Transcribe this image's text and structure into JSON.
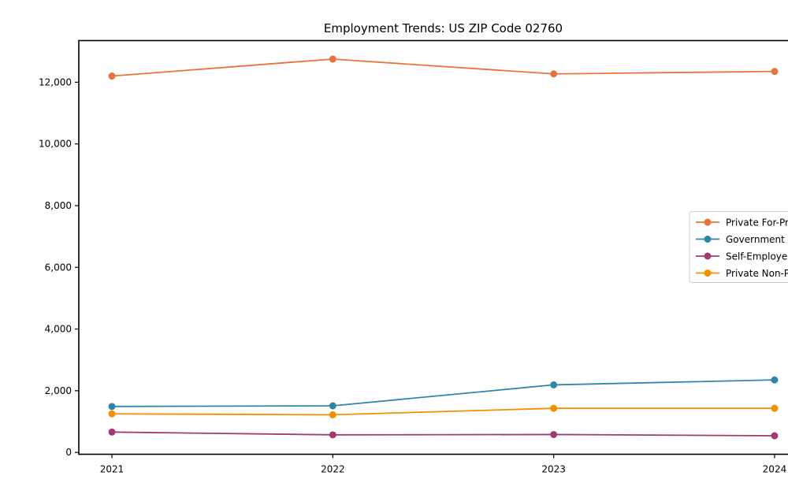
{
  "chart_data": {
    "type": "line",
    "title": "Employment Trends: US ZIP Code 02760",
    "x": [
      2021,
      2022,
      2023,
      2024
    ],
    "x_tick_labels": [
      "2021",
      "2022",
      "2023",
      "2024"
    ],
    "series": [
      {
        "name": "Private For-Profit",
        "color": "#E8743B",
        "values": [
          12200,
          12750,
          12270,
          12350
        ]
      },
      {
        "name": "Government",
        "color": "#2E86AB",
        "values": [
          1490,
          1510,
          2190,
          2350
        ]
      },
      {
        "name": "Self-Employed",
        "color": "#A23B72",
        "values": [
          660,
          570,
          580,
          540
        ]
      },
      {
        "name": "Private Non-Profit",
        "color": "#F18F01",
        "values": [
          1250,
          1220,
          1430,
          1430
        ]
      }
    ],
    "xlim": [
      2020.85,
      2024.15
    ],
    "ylim": [
      -60,
      13350
    ],
    "yticks": [
      0,
      2000,
      4000,
      6000,
      8000,
      10000,
      12000
    ],
    "ytick_labels": [
      "0",
      "2,000",
      "4,000",
      "6,000",
      "8,000",
      "10,000",
      "12,000"
    ],
    "grid": false,
    "legend_position": "center right",
    "marker": "circle",
    "axis_color": "#000000",
    "legend_border_color": "#cccccc",
    "background_color": "#ffffff"
  }
}
